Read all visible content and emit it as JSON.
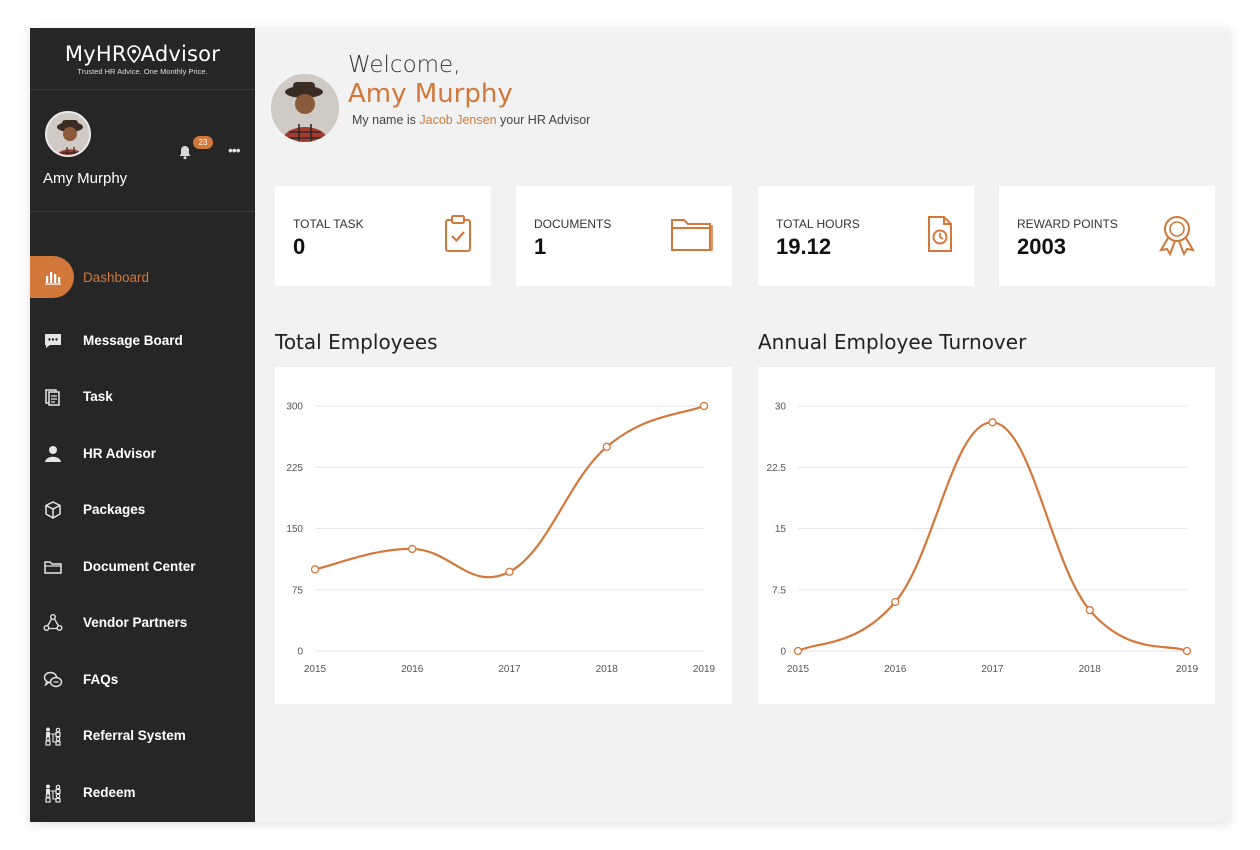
{
  "brand": {
    "logo_text_left": "MyHR",
    "logo_text_right": "Advisor",
    "tagline": "Trusted HR Advice. One Monthly Price."
  },
  "user": {
    "name": "Amy Murphy",
    "notifications_count": "23"
  },
  "sidebar": {
    "items": [
      {
        "label": "Dashboard",
        "icon": "bar-chart-icon",
        "active": true
      },
      {
        "label": "Message Board",
        "icon": "chat-icon"
      },
      {
        "label": "Task",
        "icon": "documents-icon"
      },
      {
        "label": "HR Advisor",
        "icon": "person-icon"
      },
      {
        "label": "Packages",
        "icon": "box-icon"
      },
      {
        "label": "Document Center",
        "icon": "folder-icon"
      },
      {
        "label": "Vendor Partners",
        "icon": "network-icon"
      },
      {
        "label": "FAQs",
        "icon": "faq-icon"
      },
      {
        "label": "Referral System",
        "icon": "referral-icon"
      },
      {
        "label": "Redeem",
        "icon": "redeem-icon"
      }
    ]
  },
  "hero": {
    "welcome": "Welcome,",
    "name": "Amy Murphy",
    "advisor_prefix": "My name is",
    "advisor_name": "Jacob Jensen",
    "advisor_suffix": "your HR Advisor"
  },
  "stats": [
    {
      "label": "TOTAL TASK",
      "value": "0",
      "icon": "clipboard-check-icon"
    },
    {
      "label": "DOCUMENTS",
      "value": "1",
      "icon": "folder-icon"
    },
    {
      "label": "TOTAL HOURS",
      "value": "19.12",
      "icon": "document-clock-icon"
    },
    {
      "label": "REWARD POINTS",
      "value": "2003",
      "icon": "award-ribbon-icon"
    }
  ],
  "colors": {
    "accent": "#d1783a",
    "sidebar_bg": "#262626",
    "page_bg": "#f2f2f2"
  },
  "chart_data": [
    {
      "type": "line",
      "title": "Total Employees",
      "x": [
        "2015",
        "2016",
        "2017",
        "2018",
        "2019"
      ],
      "values": [
        100,
        125,
        97,
        250,
        300
      ],
      "yticks": [
        "0",
        "75",
        "150",
        "225",
        "300"
      ],
      "ylim": [
        0,
        300
      ],
      "grid": true,
      "smooth": true
    },
    {
      "type": "line",
      "title": "Annual Employee Turnover",
      "x": [
        "2015",
        "2016",
        "2017",
        "2018",
        "2019"
      ],
      "values": [
        0,
        6,
        28,
        5,
        0
      ],
      "yticks": [
        "0",
        "7.5",
        "15",
        "22.5",
        "30"
      ],
      "ylim": [
        0,
        30
      ],
      "grid": true,
      "smooth": true
    }
  ]
}
